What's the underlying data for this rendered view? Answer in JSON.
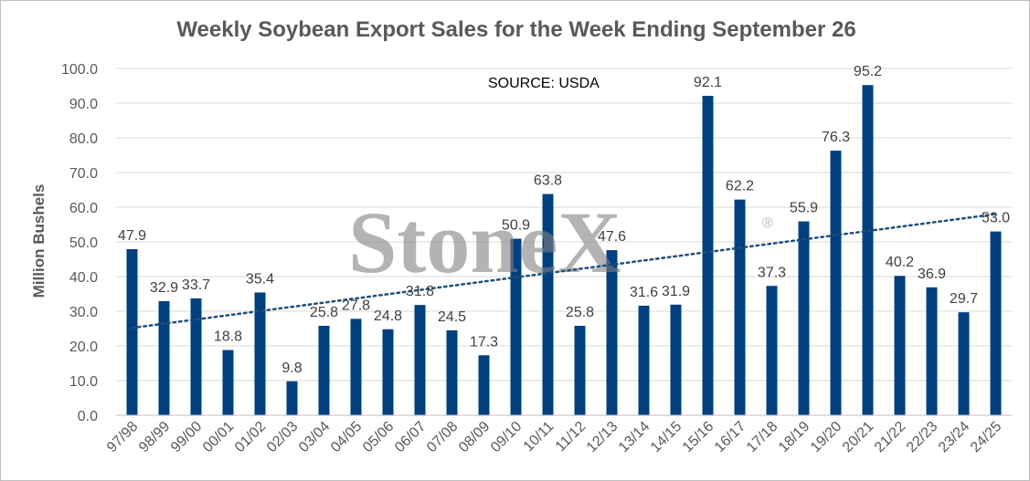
{
  "chart_data": {
    "type": "bar",
    "title": "Weekly Soybean Export Sales for the Week Ending September 26",
    "ylabel": "Million Bushels",
    "xlabel": "",
    "ylim": [
      0,
      100
    ],
    "y_ticks": [
      "0.0",
      "10.0",
      "20.0",
      "30.0",
      "40.0",
      "50.0",
      "60.0",
      "70.0",
      "80.0",
      "90.0",
      "100.0"
    ],
    "categories": [
      "97/98",
      "98/99",
      "99/00",
      "00/01",
      "01/02",
      "02/03",
      "03/04",
      "04/05",
      "05/06",
      "06/07",
      "07/08",
      "08/09",
      "09/10",
      "10/11",
      "11/12",
      "12/13",
      "13/14",
      "14/15",
      "15/16",
      "16/17",
      "17/18",
      "18/19",
      "19/20",
      "20/21",
      "21/22",
      "22/23",
      "23/24",
      "24/25"
    ],
    "values": [
      47.9,
      32.9,
      33.7,
      18.8,
      35.4,
      9.8,
      25.8,
      27.8,
      24.8,
      31.8,
      24.5,
      17.3,
      50.9,
      63.8,
      25.8,
      47.6,
      31.6,
      31.9,
      92.1,
      62.2,
      37.3,
      55.9,
      76.3,
      95.2,
      40.2,
      36.9,
      29.7,
      53.0
    ],
    "data_labels": [
      "47.9",
      "32.9",
      "33.7",
      "18.8",
      "35.4",
      "9.8",
      "25.8",
      "27.8",
      "24.8",
      "31.8",
      "24.5",
      "17.3",
      "50.9",
      "63.8",
      "25.8",
      "47.6",
      "31.6",
      "31.9",
      "92.1",
      "62.2",
      "37.3",
      "55.9",
      "76.3",
      "95.2",
      "40.2",
      "36.9",
      "29.7",
      "53.0"
    ],
    "bar_color": "#004080",
    "trendline": {
      "type": "linear",
      "style": "dotted",
      "color": "#1f4e79",
      "start_value": 25.2,
      "end_value": 58.0
    },
    "grid": true,
    "annotation": "SOURCE: USDA",
    "watermark": {
      "text": "StoneX",
      "mark": "®",
      "color": "#808080"
    }
  }
}
